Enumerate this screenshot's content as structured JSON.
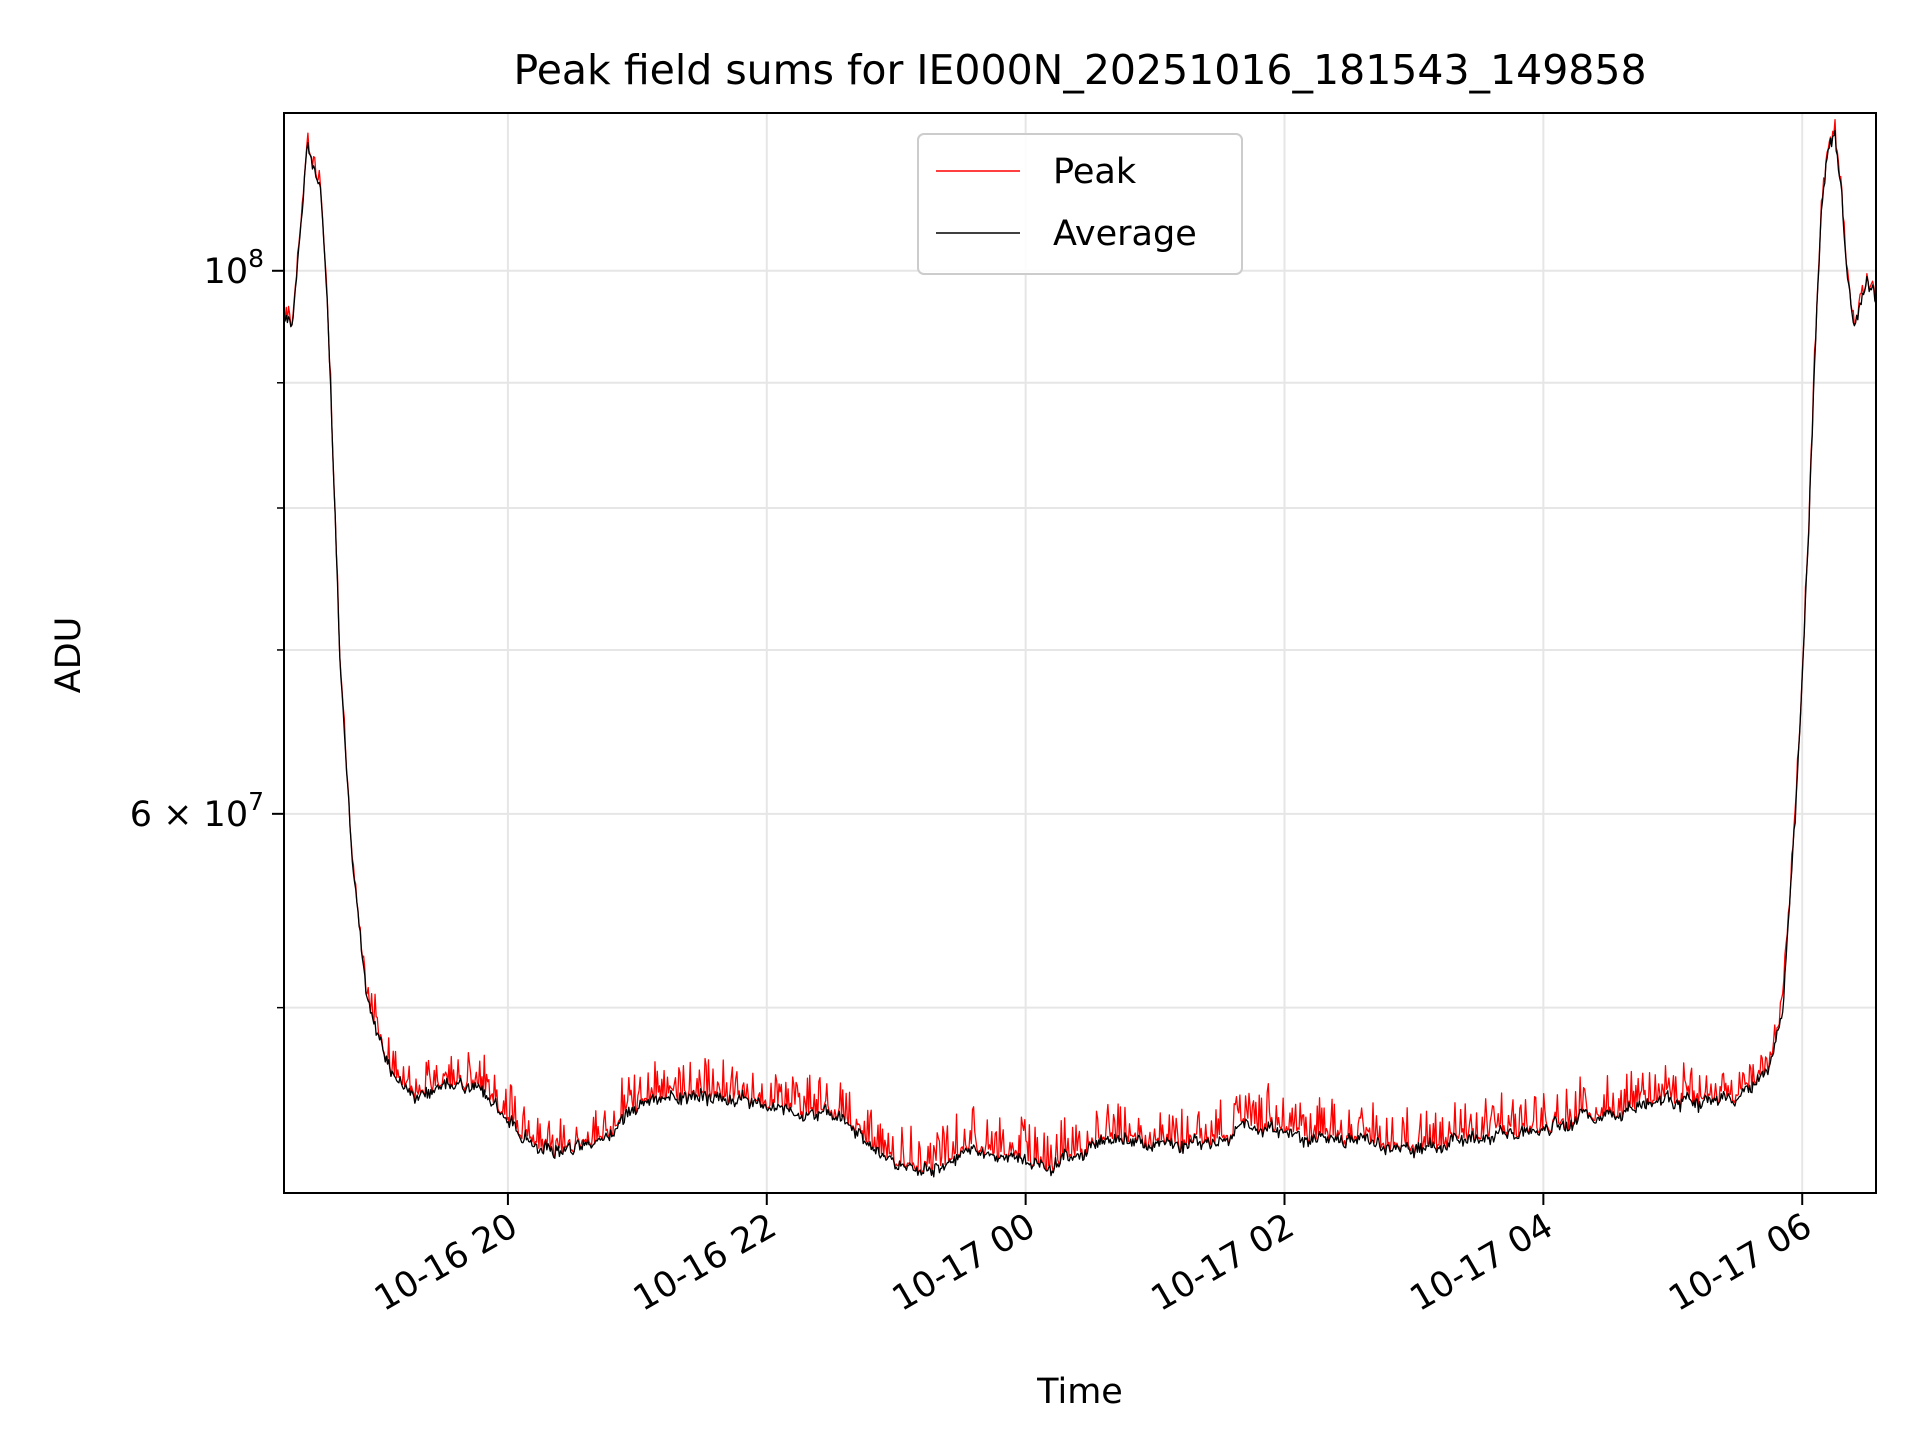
{
  "chart_data": {
    "type": "line",
    "title": "Peak field sums for IE000N_20251016_181543_149858",
    "xlabel": "Time",
    "ylabel": "ADU",
    "yscale": "log",
    "grid": true,
    "legend_position": "upper center",
    "xlim_hours": [
      18.27,
      6.57
    ],
    "ylim": [
      42000000,
      116000000
    ],
    "x_ticks": [
      {
        "label": "10-16 20",
        "hour": 20
      },
      {
        "label": "10-16 22",
        "hour": 22
      },
      {
        "label": "10-17 00",
        "hour": 24
      },
      {
        "label": "10-17 02",
        "hour": 26
      },
      {
        "label": "10-17 04",
        "hour": 28
      },
      {
        "label": "10-17 06",
        "hour": 30
      }
    ],
    "y_ticks": [
      {
        "label_base": "10",
        "label_exp": "8",
        "value": 100000000
      },
      {
        "label_base": "6 × 10",
        "label_exp": "7",
        "value": 60000000
      }
    ],
    "y_minor_ticks": [
      50000000,
      70000000,
      80000000,
      90000000
    ],
    "series": [
      {
        "name": "Peak",
        "color": "#ff0000"
      },
      {
        "name": "Average",
        "color": "#000000"
      }
    ],
    "average_profile": {
      "hours": [
        18.27,
        18.33,
        18.4,
        18.45,
        18.5,
        18.55,
        18.6,
        18.7,
        18.8,
        18.9,
        19.0,
        19.1,
        19.25,
        19.5,
        19.75,
        20.0,
        20.25,
        20.5,
        20.75,
        21.0,
        21.25,
        21.5,
        21.75,
        22.0,
        22.5,
        23.0,
        23.25,
        23.5,
        23.75,
        24.0,
        24.25,
        24.5,
        24.75,
        25.0,
        25.25,
        25.5,
        25.75,
        26.0,
        26.5,
        27.0,
        27.5,
        28.0,
        28.5,
        29.0,
        29.5,
        29.75,
        29.85,
        29.95,
        30.0,
        30.05,
        30.1,
        30.15,
        30.2,
        30.25,
        30.3,
        30.35,
        30.4,
        30.45,
        30.5,
        30.57
      ],
      "values": [
        96000000,
        94500000,
        104000000,
        112000000,
        110000000,
        108000000,
        98000000,
        70000000,
        57000000,
        51000000,
        48500000,
        47000000,
        45800000,
        46200000,
        46500000,
        45000000,
        43800000,
        44000000,
        44400000,
        45400000,
        46200000,
        46000000,
        45800000,
        45600000,
        45200000,
        43200000,
        42900000,
        43600000,
        43800000,
        43400000,
        43200000,
        43800000,
        44100000,
        44100000,
        43800000,
        44300000,
        44600000,
        44500000,
        44100000,
        43800000,
        44200000,
        44600000,
        45300000,
        45800000,
        46000000,
        47200000,
        50000000,
        60000000,
        68000000,
        78000000,
        93000000,
        106000000,
        112000000,
        114000000,
        108000000,
        99000000,
        95000000,
        97000000,
        99000000,
        97000000
      ]
    },
    "peak_excess": {
      "hours": [
        18.27,
        18.9,
        19.0,
        19.5,
        20.0,
        21.0,
        22.0,
        23.0,
        24.0,
        25.0,
        25.6,
        26.0,
        27.0,
        28.0,
        29.0,
        29.8,
        30.57
      ],
      "values": [
        0.01,
        0.015,
        0.03,
        0.03,
        0.035,
        0.035,
        0.035,
        0.04,
        0.04,
        0.03,
        0.04,
        0.04,
        0.035,
        0.035,
        0.035,
        0.02,
        0.01
      ]
    }
  }
}
